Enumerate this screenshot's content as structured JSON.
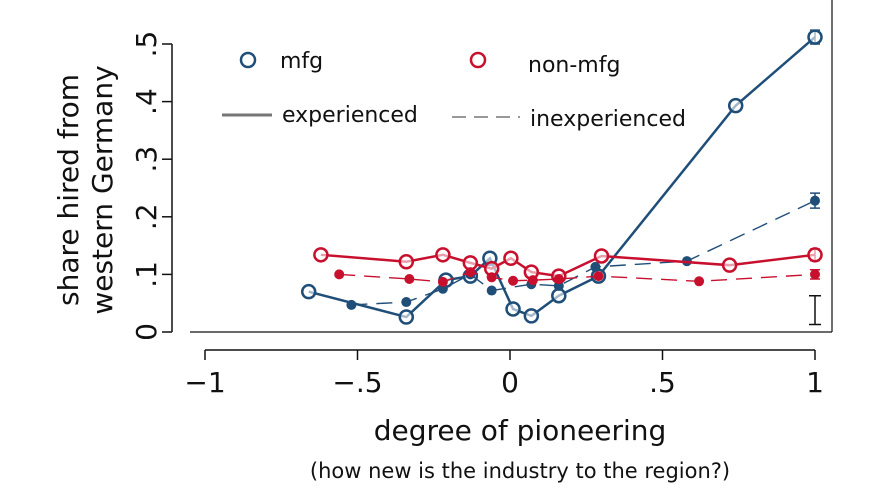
{
  "chart_data": {
    "type": "line",
    "xlabel": "degree of pioneering",
    "xlabel_sub": "(how new is the industry to the region?)",
    "ylabel_lines": [
      "share hired from",
      "western Germany"
    ],
    "xlim": [
      -1,
      1
    ],
    "ylim": [
      0,
      0.5
    ],
    "x_ticks": [
      {
        "v": -1,
        "label": "−1"
      },
      {
        "v": -0.5,
        "label": "−.5"
      },
      {
        "v": 0,
        "label": "0"
      },
      {
        "v": 0.5,
        "label": ".5"
      },
      {
        "v": 1,
        "label": "1"
      }
    ],
    "y_ticks": [
      {
        "v": 0,
        "label": "0"
      },
      {
        "v": 0.1,
        "label": ".1"
      },
      {
        "v": 0.2,
        "label": ".2"
      },
      {
        "v": 0.3,
        "label": ".3"
      },
      {
        "v": 0.4,
        "label": ".4"
      },
      {
        "v": 0.5,
        "label": ".5"
      }
    ],
    "grid": false,
    "legend": {
      "placement": "top-left",
      "colors": [
        "mfg",
        "non-mfg"
      ],
      "styles": [
        "experienced",
        "inexperienced"
      ]
    },
    "colors": {
      "mfg": "#1f4e79",
      "non-mfg": "#c8102e"
    },
    "series": [
      {
        "group": "mfg",
        "type": "experienced",
        "x": [
          -0.66,
          -0.34,
          -0.21,
          -0.13,
          -0.066,
          0.01,
          0.07,
          0.16,
          0.29,
          0.74,
          1.0
        ],
        "y": [
          0.07,
          0.026,
          0.09,
          0.097,
          0.128,
          0.04,
          0.028,
          0.063,
          0.097,
          0.393,
          0.512
        ]
      },
      {
        "group": "mfg",
        "type": "inexperienced",
        "x": [
          -0.52,
          -0.34,
          -0.22,
          -0.13,
          -0.06,
          0.07,
          0.16,
          0.28,
          0.58,
          1.0
        ],
        "y": [
          0.047,
          0.052,
          0.075,
          0.1,
          0.072,
          0.083,
          0.08,
          0.113,
          0.123,
          0.228
        ]
      },
      {
        "group": "non-mfg",
        "type": "experienced",
        "x": [
          -0.62,
          -0.34,
          -0.22,
          -0.13,
          -0.06,
          0.003,
          0.07,
          0.16,
          0.3,
          0.72,
          1.0
        ],
        "y": [
          0.134,
          0.122,
          0.134,
          0.12,
          0.11,
          0.128,
          0.104,
          0.097,
          0.132,
          0.116,
          0.134
        ]
      },
      {
        "group": "non-mfg",
        "type": "inexperienced",
        "x": [
          -0.56,
          -0.33,
          -0.22,
          -0.13,
          -0.06,
          0.01,
          0.075,
          0.16,
          0.29,
          0.62,
          1.0
        ],
        "y": [
          0.1,
          0.092,
          0.087,
          0.104,
          0.095,
          0.089,
          0.09,
          0.092,
          0.097,
          0.088,
          0.1
        ]
      }
    ],
    "error_bars_at_x1": {
      "mfg-experienced": [
        0.5,
        0.524
      ],
      "mfg-inexperienced": [
        0.215,
        0.241
      ],
      "non-mfg-experienced": [
        0.124,
        0.144
      ],
      "non-mfg-inexperienced": [
        0.092,
        0.108
      ]
    },
    "reference_interval": {
      "x": 1.0,
      "y": [
        0.013,
        0.063
      ]
    }
  }
}
